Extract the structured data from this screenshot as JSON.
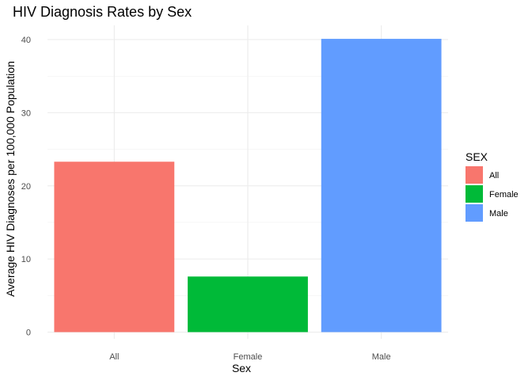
{
  "chart_data": {
    "type": "bar",
    "title": "HIV Diagnosis Rates by Sex",
    "xlabel": "Sex",
    "ylabel": "Average HIV Diagnoses per 100,000 Population",
    "categories": [
      "All",
      "Female",
      "Male"
    ],
    "values": [
      23.3,
      7.6,
      40.1
    ],
    "colors": [
      "#F8766D",
      "#00BA38",
      "#619CFF"
    ],
    "ylim": [
      0,
      42
    ],
    "yticks": [
      0,
      10,
      20,
      30,
      40
    ],
    "grid": true,
    "legend": {
      "title": "SEX",
      "placement": "right",
      "entries": [
        "All",
        "Female",
        "Male"
      ]
    }
  }
}
